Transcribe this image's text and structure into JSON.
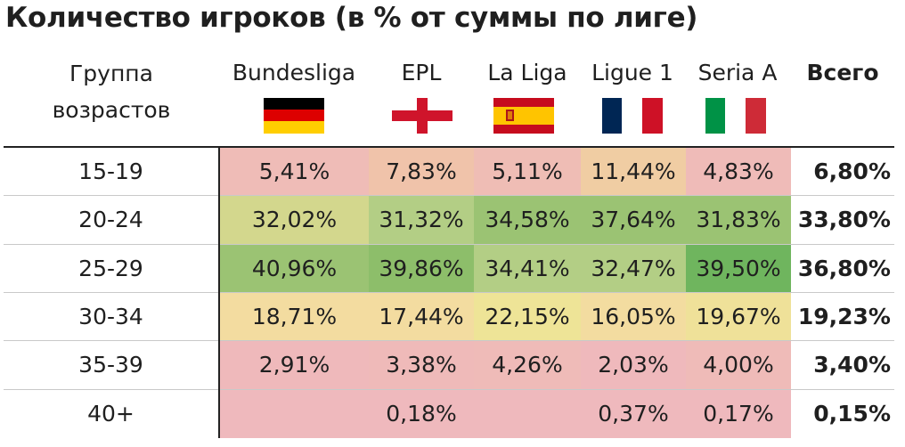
{
  "title": "Количество игроков (в % от суммы по лиге)",
  "header": {
    "group_label": "Группа возрастов",
    "total_label": "Всего"
  },
  "leagues": [
    {
      "name": "Bundesliga",
      "flag": "germany-flag"
    },
    {
      "name": "EPL",
      "flag": "england-flag"
    },
    {
      "name": "La Liga",
      "flag": "spain-flag"
    },
    {
      "name": "Ligue 1",
      "flag": "france-flag"
    },
    {
      "name": "Seria A",
      "flag": "italy-flag"
    }
  ],
  "colors": {
    "red": "#efbcba",
    "orange": "#f0c3a3",
    "yellow_light": "#f3dca0",
    "yellow": "#eee497",
    "olive": "#d3d78d",
    "green_light": "#b3ce85",
    "green_mid": "#9bc373",
    "green_dark": "#6fb55e",
    "pink_empty": "#efb9bd"
  },
  "chart_data": {
    "type": "table",
    "title": "Количество игроков (в % от суммы по лиге)",
    "row_header": "Группа возрастов",
    "columns": [
      "Bundesliga",
      "EPL",
      "La Liga",
      "Ligue 1",
      "Seria A",
      "Всего"
    ],
    "rows": [
      {
        "age": "15-19",
        "values": [
          "5,41%",
          "7,83%",
          "5,11%",
          "11,44%",
          "4,83%"
        ],
        "total": "6,80%",
        "colors": [
          "#efbcb7",
          "#f0c3aa",
          "#efbdb5",
          "#f0cda3",
          "#efbbb8"
        ]
      },
      {
        "age": "20-24",
        "values": [
          "32,02%",
          "31,32%",
          "34,58%",
          "37,64%",
          "31,83%"
        ],
        "total": "33,80%",
        "colors": [
          "#d3d78d",
          "#b3ce85",
          "#9bc373",
          "#9bc373",
          "#9bc373"
        ]
      },
      {
        "age": "25-29",
        "values": [
          "40,96%",
          "39,86%",
          "34,41%",
          "32,47%",
          "39,50%"
        ],
        "total": "36,80%",
        "colors": [
          "#9bc373",
          "#8dbe6a",
          "#b3ce85",
          "#b3ce85",
          "#6fb55e"
        ]
      },
      {
        "age": "30-34",
        "values": [
          "18,71%",
          "17,44%",
          "22,15%",
          "16,05%",
          "19,67%"
        ],
        "total": "19,23%",
        "colors": [
          "#f3dca0",
          "#f3dca0",
          "#eee497",
          "#f3dca0",
          "#efe199"
        ]
      },
      {
        "age": "35-39",
        "values": [
          "2,91%",
          "3,38%",
          "4,26%",
          "2,03%",
          "4,00%"
        ],
        "total": "3,40%",
        "colors": [
          "#efb9bb",
          "#efbab9",
          "#efbbb8",
          "#efb9bc",
          "#efbbb8"
        ]
      },
      {
        "age": "40+",
        "values": [
          "",
          "0,18%",
          "",
          "0,37%",
          "0,17%"
        ],
        "total": "0,15%",
        "colors": [
          "#efb9bd",
          "#efb9bd",
          "#efb9bd",
          "#efb9bd",
          "#efb9bd"
        ]
      }
    ]
  }
}
